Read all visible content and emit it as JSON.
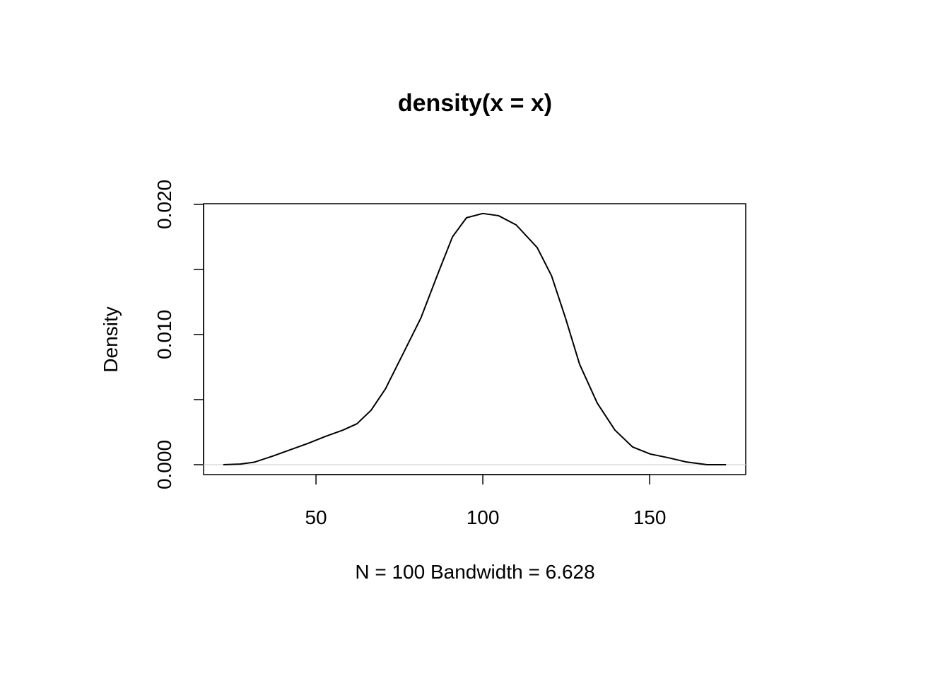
{
  "chart_data": {
    "type": "line",
    "title": "density(x = x)",
    "xlabel": "N = 100   Bandwidth = 6.628",
    "ylabel": "Density",
    "x": [
      22.2,
      27.3,
      31.6,
      36.9,
      42.2,
      47.5,
      52.8,
      58.1,
      62.3,
      66.5,
      70.8,
      76.1,
      81.4,
      86.7,
      90.9,
      95.1,
      100,
      104.7,
      110,
      116.3,
      120.6,
      124.8,
      129.0,
      134.3,
      139.6,
      144.9,
      150.2,
      155.5,
      160.8,
      167.2,
      172.9
    ],
    "series": [
      {
        "name": "density",
        "color": "#000000",
        "values": [
          0,
          5e-05,
          0.0002,
          0.00065,
          0.00114,
          0.00163,
          0.00217,
          0.00266,
          0.00315,
          0.00418,
          0.00582,
          0.00853,
          0.01125,
          0.01478,
          0.0175,
          0.01897,
          0.0193,
          0.01913,
          0.01842,
          0.01668,
          0.01451,
          0.01125,
          0.00772,
          0.00473,
          0.00266,
          0.00136,
          0.00082,
          0.00054,
          0.00022,
          0,
          0
        ]
      }
    ],
    "xlim": [
      16.3,
      178.8
    ],
    "ylim": [
      -0.00076,
      0.02005
    ],
    "xticks": [
      50,
      100,
      150
    ],
    "yticks": [
      {
        "value": 0,
        "label": "0.000"
      },
      {
        "value": 0.005,
        "label": null
      },
      {
        "value": 0.01,
        "label": "0.010"
      },
      {
        "value": 0.015,
        "label": null
      },
      {
        "value": 0.02,
        "label": "0.020"
      }
    ],
    "zero_line": true,
    "zero_line_color": "#d3d3d3"
  }
}
